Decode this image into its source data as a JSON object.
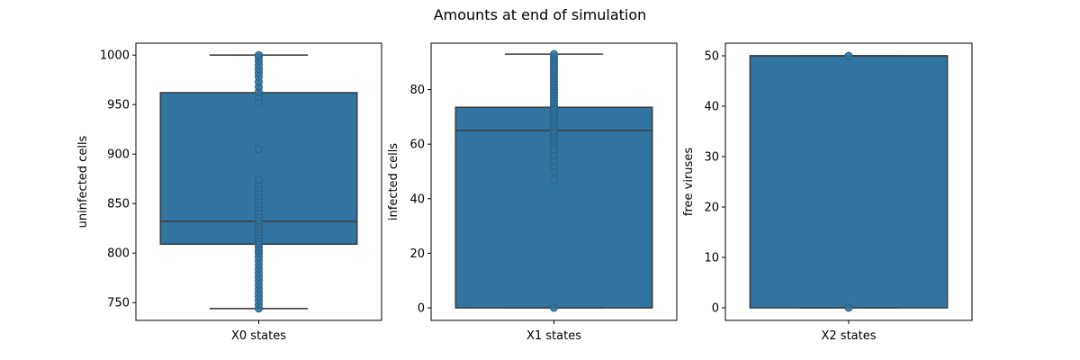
{
  "figure": {
    "suptitle": "Amounts at end of simulation"
  },
  "colors": {
    "box_fill": "#3274a1",
    "box_edge": "#3d3d3d",
    "point_fill": "#3274a1",
    "point_edge": "#2a5f84"
  },
  "chart_data": [
    {
      "type": "box",
      "category": "X0 states",
      "xlabel": "X0 states",
      "ylabel": "uninfected cells",
      "ylim": [
        732,
        1012
      ],
      "yticks": [
        750,
        800,
        850,
        900,
        950,
        1000
      ],
      "stats": {
        "whisker_low": 744,
        "q1": 809,
        "median": 832,
        "q3": 962,
        "whisker_high": 1000
      },
      "points": [
        744,
        748,
        752,
        756,
        760,
        764,
        768,
        772,
        776,
        780,
        784,
        788,
        792,
        796,
        800,
        803,
        806,
        809,
        812,
        815,
        818,
        821,
        824,
        827,
        830,
        833,
        836,
        839,
        842,
        846,
        850,
        854,
        858,
        862,
        866,
        870,
        874,
        905,
        952,
        958,
        963,
        968,
        973,
        978,
        982,
        986,
        990,
        994,
        998,
        1000
      ]
    },
    {
      "type": "box",
      "category": "X1 states",
      "xlabel": "X1 states",
      "ylabel": "infected cells",
      "ylim": [
        -4.6,
        97
      ],
      "yticks": [
        0,
        20,
        40,
        60,
        80
      ],
      "stats": {
        "whisker_low": 0,
        "q1": 0,
        "median": 65,
        "q3": 73.5,
        "whisker_high": 93
      },
      "points": [
        0,
        47,
        50,
        52,
        54,
        56,
        58,
        60,
        61,
        62,
        63,
        64,
        65,
        66,
        67,
        68,
        69,
        70,
        71,
        72,
        73,
        74,
        75,
        76,
        77,
        78,
        79,
        80,
        81,
        82,
        83,
        84,
        85,
        86,
        87,
        88,
        89,
        90,
        91,
        92,
        93
      ]
    },
    {
      "type": "box",
      "category": "X2 states",
      "xlabel": "X2 states",
      "ylabel": "free viruses",
      "ylim": [
        -2.5,
        52.5
      ],
      "yticks": [
        0,
        10,
        20,
        30,
        40,
        50
      ],
      "stats": {
        "whisker_low": 0,
        "q1": 0,
        "median": 50,
        "q3": 50,
        "whisker_high": 50
      },
      "points": [
        0,
        50
      ]
    }
  ]
}
